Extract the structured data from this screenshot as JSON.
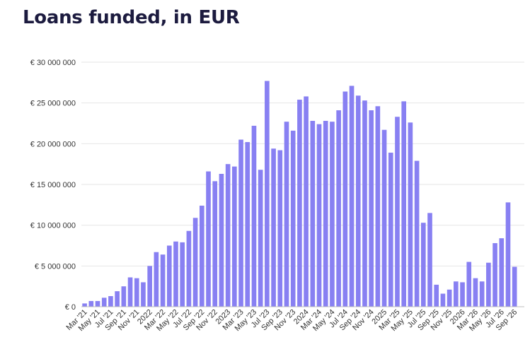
{
  "title": "Loans funded, in EUR",
  "chart_data": {
    "type": "bar",
    "title": "Loans funded, in EUR",
    "xlabel": "",
    "ylabel": "",
    "ylim": [
      0,
      30000000
    ],
    "grid": true,
    "bar_color": "#8880f2",
    "grid_color": "#e6e6e6",
    "y_ticks": [
      {
        "value": 0,
        "label": "€ 0"
      },
      {
        "value": 5000000,
        "label": "€ 5 000 000"
      },
      {
        "value": 10000000,
        "label": "€ 10 000 000"
      },
      {
        "value": 15000000,
        "label": "€ 15 000 000"
      },
      {
        "value": 20000000,
        "label": "€ 20 000 000"
      },
      {
        "value": 25000000,
        "label": "€ 25 000 000"
      },
      {
        "value": 30000000,
        "label": "€ 30 000 000"
      }
    ],
    "categories": [
      "Mar '21",
      "Apr '21",
      "May '21",
      "Jun '21",
      "Jul '21",
      "Aug '21",
      "Sep '21",
      "Oct '21",
      "Nov '21",
      "Dec '21",
      "2022",
      "Feb '22",
      "Mar '22",
      "Apr '22",
      "May '22",
      "Jun '22",
      "Jul '22",
      "Aug '22",
      "Sep '22",
      "Oct '22",
      "Nov '22",
      "Dec '22",
      "2023",
      "Feb '23",
      "Mar '23",
      "Apr '23",
      "May '23",
      "Jun '23",
      "Jul '23",
      "Aug '23",
      "Sep '23",
      "Oct '23",
      "Nov '23",
      "Dec '23",
      "2024",
      "Feb '24",
      "Mar '24",
      "Apr '24",
      "May '24",
      "Jun '24",
      "Jul '24",
      "Aug '24",
      "Sep '24",
      "Oct '24",
      "Nov '24",
      "Dec '24",
      "2025",
      "Feb '25",
      "Mar '25",
      "Apr '25",
      "May '25",
      "Jun '25",
      "Jul '25",
      "Aug '25",
      "Sep '25",
      "Oct '25",
      "Nov '25",
      "Dec '25",
      "2026",
      "Feb '26",
      "Mar '26",
      "Apr '26",
      "May '26",
      "Jun '26",
      "Jul '26",
      "Aug '26",
      "Sep '26",
      "Oct '26"
    ],
    "x_tick_labels": [
      "Mar '21",
      "May '21",
      "Jul '21",
      "Sep '21",
      "Nov '21",
      "2022",
      "Mar '22",
      "May '22",
      "Jul '22",
      "Sep '22",
      "Nov '22",
      "2023",
      "Mar '23",
      "May '23",
      "Jul '23",
      "Sep '23",
      "Nov '23",
      "2024",
      "Mar '24",
      "May '24",
      "Jul '24",
      "Sep '24",
      "Nov '24",
      "2025",
      "Mar '25",
      "May '25",
      "Jul '25",
      "Sep '25",
      "Nov '25",
      "2026",
      "Mar '26",
      "May '26",
      "Jul '26",
      "Sep '26"
    ],
    "values": [
      400000,
      700000,
      700000,
      1100000,
      1300000,
      1900000,
      2500000,
      3600000,
      3500000,
      3000000,
      5000000,
      6700000,
      6400000,
      7500000,
      8000000,
      7900000,
      9300000,
      10900000,
      12400000,
      16600000,
      15400000,
      16300000,
      17500000,
      17200000,
      20500000,
      20200000,
      22200000,
      16800000,
      27700000,
      19400000,
      19200000,
      22700000,
      21600000,
      25400000,
      25800000,
      22800000,
      22400000,
      22800000,
      22700000,
      24100000,
      26400000,
      27100000,
      25900000,
      25300000,
      24100000,
      24600000,
      21700000,
      18900000,
      23300000,
      25200000,
      22600000,
      17900000,
      10300000,
      11500000,
      2700000,
      1600000,
      2100000,
      3100000,
      3000000,
      5500000,
      3500000,
      3100000,
      5400000,
      7800000,
      8400000,
      12800000,
      4900000,
      0
    ]
  }
}
